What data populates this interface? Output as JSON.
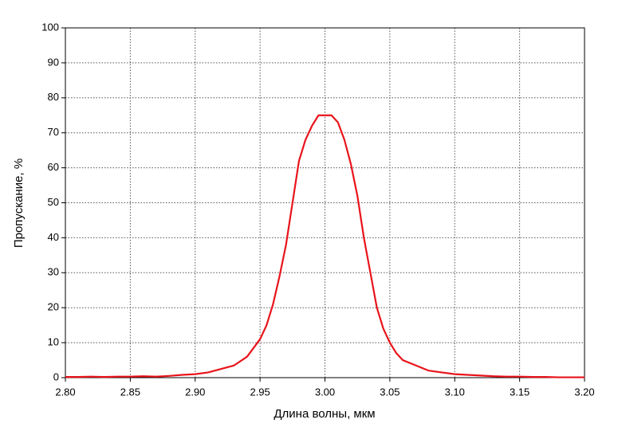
{
  "chart_data": {
    "type": "line",
    "x_label": "Длина волны, мкм",
    "y_label": "Пропускание, %",
    "x": [
      2.8,
      2.81,
      2.82,
      2.83,
      2.84,
      2.85,
      2.86,
      2.87,
      2.88,
      2.89,
      2.9,
      2.91,
      2.92,
      2.93,
      2.94,
      2.95,
      2.955,
      2.96,
      2.965,
      2.97,
      2.975,
      2.98,
      2.985,
      2.99,
      2.995,
      3.0,
      3.005,
      3.01,
      3.015,
      3.02,
      3.025,
      3.03,
      3.035,
      3.04,
      3.045,
      3.05,
      3.055,
      3.06,
      3.07,
      3.08,
      3.09,
      3.1,
      3.11,
      3.12,
      3.13,
      3.14,
      3.15,
      3.16,
      3.17,
      3.18,
      3.19,
      3.2
    ],
    "series": [
      {
        "color": "#e8141b",
        "values": [
          0.2,
          0.2,
          0.3,
          0.2,
          0.3,
          0.3,
          0.4,
          0.3,
          0.5,
          0.8,
          1.0,
          1.5,
          2.5,
          3.5,
          6,
          11,
          15,
          21,
          29,
          38,
          50,
          62,
          68,
          72,
          75,
          75,
          75,
          73,
          68,
          61,
          52,
          40,
          30,
          20,
          14,
          10,
          7,
          5,
          3.5,
          2,
          1.5,
          1,
          0.8,
          0.6,
          0.4,
          0.3,
          0.3,
          0.2,
          0.2,
          0.1,
          0.1,
          0.1
        ]
      }
    ],
    "xlim": [
      2.8,
      3.2
    ],
    "xticks": [
      {
        "value": 2.8,
        "label": "2.80"
      },
      {
        "value": 2.85,
        "label": "2.85"
      },
      {
        "value": 2.9,
        "label": "2.90"
      },
      {
        "value": 2.95,
        "label": "2.95"
      },
      {
        "value": 3.0,
        "label": "3.00"
      },
      {
        "value": 3.05,
        "label": "3.05"
      },
      {
        "value": 3.1,
        "label": "3.10"
      },
      {
        "value": 3.15,
        "label": "3.15"
      },
      {
        "value": 3.2,
        "label": "3.20"
      }
    ],
    "ylim": [
      0,
      100
    ],
    "yticks": [
      0,
      10,
      20,
      30,
      40,
      50,
      60,
      70,
      80,
      90,
      100
    ],
    "grid": true
  }
}
